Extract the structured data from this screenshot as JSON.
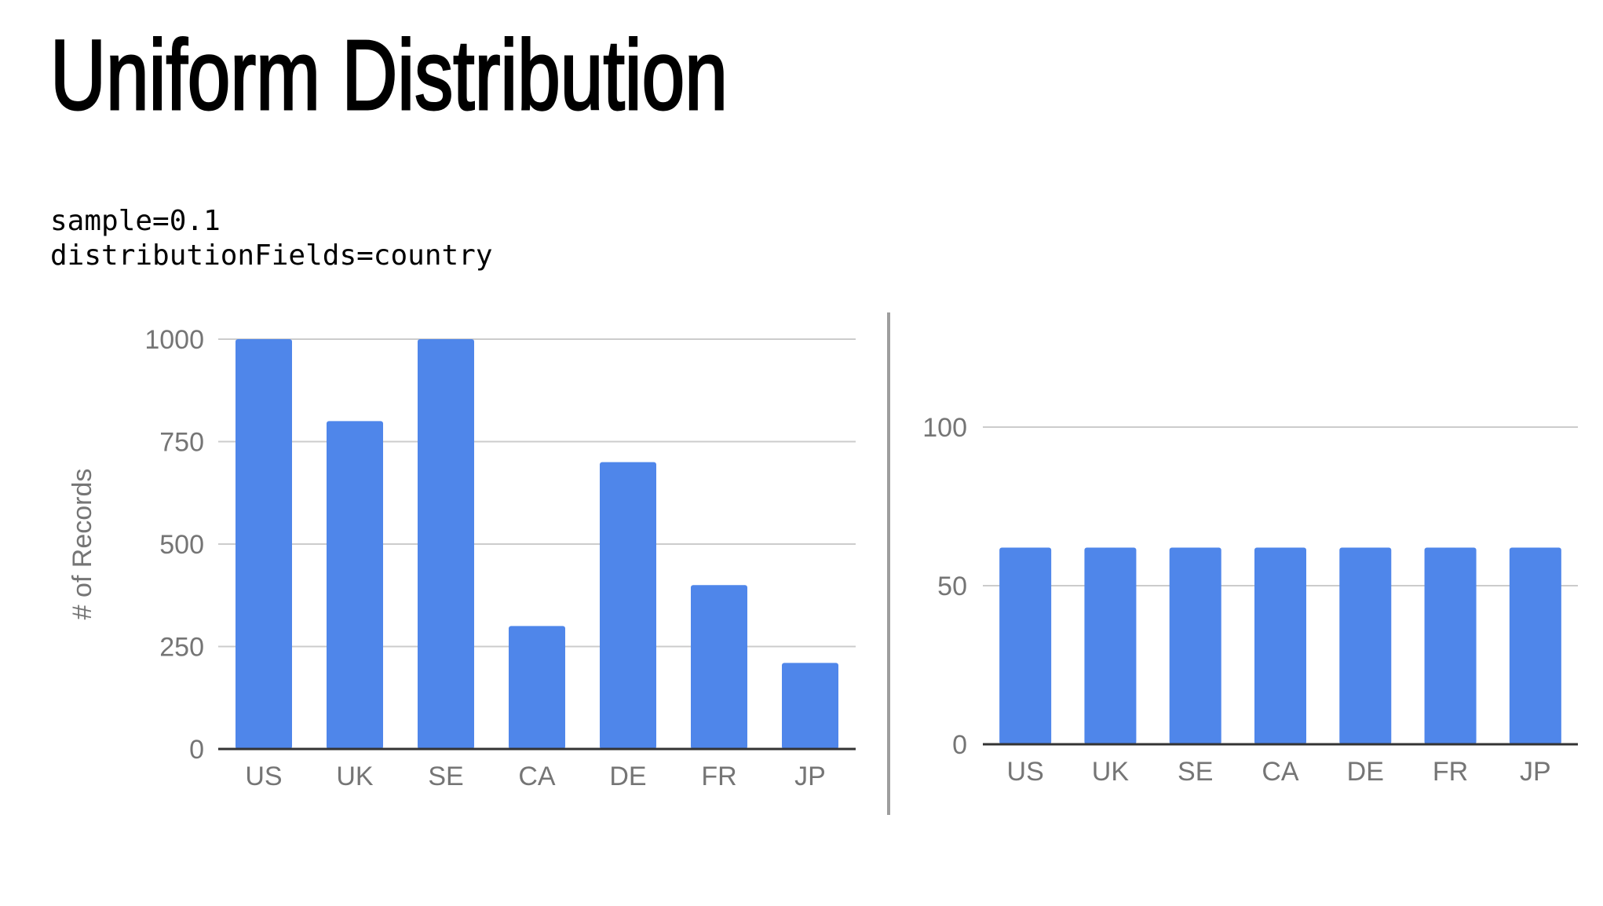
{
  "slide": {
    "title": "Uniform Distribution",
    "params": [
      "sample=0.1",
      "distributionFields=country"
    ]
  },
  "colors": {
    "bar": "#4f86ea",
    "grid": "#cccccc",
    "axis": "#333333",
    "tick_text": "#757575",
    "divider": "#9e9e9e"
  },
  "chart_data": [
    {
      "type": "bar",
      "categories": [
        "US",
        "UK",
        "SE",
        "CA",
        "DE",
        "FR",
        "JP"
      ],
      "values": [
        1000,
        800,
        1000,
        300,
        700,
        400,
        210
      ],
      "yticks": [
        0,
        250,
        500,
        750,
        1000
      ],
      "ylim": [
        0,
        1000
      ],
      "ylabel": "# of Records",
      "xlabel": "",
      "title": "",
      "grid": true
    },
    {
      "type": "bar",
      "categories": [
        "US",
        "UK",
        "SE",
        "CA",
        "DE",
        "FR",
        "JP"
      ],
      "values": [
        62,
        62,
        62,
        62,
        62,
        62,
        62
      ],
      "yticks": [
        0,
        50,
        100
      ],
      "ylim": [
        0,
        100
      ],
      "ylabel": "",
      "xlabel": "",
      "title": "",
      "grid": true
    }
  ]
}
